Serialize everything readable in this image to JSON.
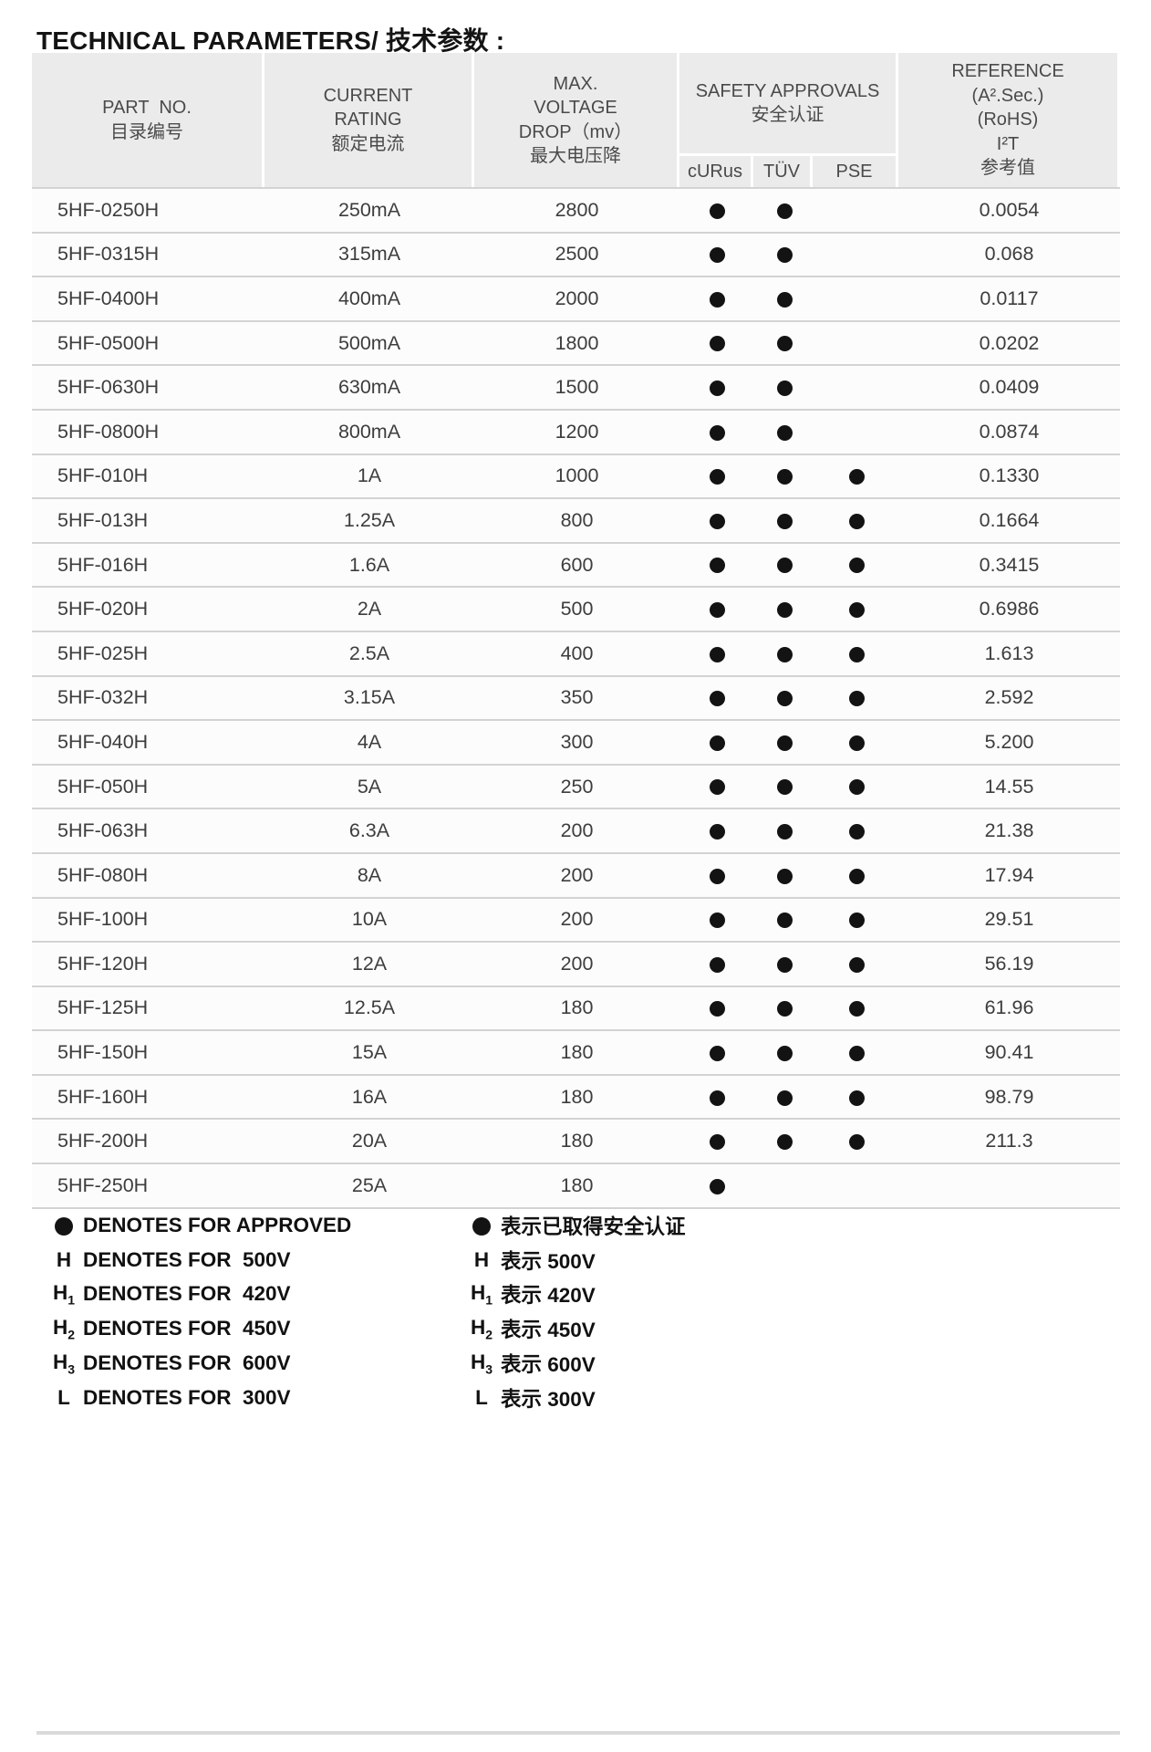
{
  "title": "TECHNICAL PARAMETERS/ 技术参数 :",
  "table": {
    "headers": {
      "part_no": {
        "lines": [
          "PART  NO.",
          "目录编号"
        ]
      },
      "current_rating": {
        "lines": [
          "CURRENT",
          "RATING",
          "额定电流"
        ]
      },
      "voltage_drop": {
        "lines": [
          "MAX.",
          "VOLTAGE",
          "DROP（mv）",
          "最大电压降"
        ]
      },
      "safety": {
        "lines": [
          "SAFETY APPROVALS",
          "安全认证"
        ],
        "subs": [
          "cURus",
          "TÜV",
          "PSE"
        ]
      },
      "reference": {
        "lines": [
          "REFERENCE",
          "(A².Sec.)",
          "(RoHS)",
          "I²T",
          "参考值"
        ]
      }
    },
    "rows": [
      {
        "part": "5HF-0250H",
        "current": "250mA",
        "drop": "2800",
        "curus": true,
        "tuv": true,
        "pse": false,
        "i2t": "0.0054"
      },
      {
        "part": "5HF-0315H",
        "current": "315mA",
        "drop": "2500",
        "curus": true,
        "tuv": true,
        "pse": false,
        "i2t": "0.068"
      },
      {
        "part": "5HF-0400H",
        "current": "400mA",
        "drop": "2000",
        "curus": true,
        "tuv": true,
        "pse": false,
        "i2t": "0.0117"
      },
      {
        "part": "5HF-0500H",
        "current": "500mA",
        "drop": "1800",
        "curus": true,
        "tuv": true,
        "pse": false,
        "i2t": "0.0202"
      },
      {
        "part": "5HF-0630H",
        "current": "630mA",
        "drop": "1500",
        "curus": true,
        "tuv": true,
        "pse": false,
        "i2t": "0.0409"
      },
      {
        "part": "5HF-0800H",
        "current": "800mA",
        "drop": "1200",
        "curus": true,
        "tuv": true,
        "pse": false,
        "i2t": "0.0874"
      },
      {
        "part": "5HF-010H",
        "current": "1A",
        "drop": "1000",
        "curus": true,
        "tuv": true,
        "pse": true,
        "i2t": "0.1330"
      },
      {
        "part": "5HF-013H",
        "current": "1.25A",
        "drop": "800",
        "curus": true,
        "tuv": true,
        "pse": true,
        "i2t": "0.1664"
      },
      {
        "part": "5HF-016H",
        "current": "1.6A",
        "drop": "600",
        "curus": true,
        "tuv": true,
        "pse": true,
        "i2t": "0.3415"
      },
      {
        "part": "5HF-020H",
        "current": "2A",
        "drop": "500",
        "curus": true,
        "tuv": true,
        "pse": true,
        "i2t": "0.6986"
      },
      {
        "part": "5HF-025H",
        "current": "2.5A",
        "drop": "400",
        "curus": true,
        "tuv": true,
        "pse": true,
        "i2t": "1.613"
      },
      {
        "part": "5HF-032H",
        "current": "3.15A",
        "drop": "350",
        "curus": true,
        "tuv": true,
        "pse": true,
        "i2t": "2.592"
      },
      {
        "part": "5HF-040H",
        "current": "4A",
        "drop": "300",
        "curus": true,
        "tuv": true,
        "pse": true,
        "i2t": "5.200"
      },
      {
        "part": "5HF-050H",
        "current": "5A",
        "drop": "250",
        "curus": true,
        "tuv": true,
        "pse": true,
        "i2t": "14.55"
      },
      {
        "part": "5HF-063H",
        "current": "6.3A",
        "drop": "200",
        "curus": true,
        "tuv": true,
        "pse": true,
        "i2t": "21.38"
      },
      {
        "part": "5HF-080H",
        "current": "8A",
        "drop": "200",
        "curus": true,
        "tuv": true,
        "pse": true,
        "i2t": "17.94"
      },
      {
        "part": "5HF-100H",
        "current": "10A",
        "drop": "200",
        "curus": true,
        "tuv": true,
        "pse": true,
        "i2t": "29.51"
      },
      {
        "part": "5HF-120H",
        "current": "12A",
        "drop": "200",
        "curus": true,
        "tuv": true,
        "pse": true,
        "i2t": "56.19"
      },
      {
        "part": "5HF-125H",
        "current": "12.5A",
        "drop": "180",
        "curus": true,
        "tuv": true,
        "pse": true,
        "i2t": "61.96"
      },
      {
        "part": "5HF-150H",
        "current": "15A",
        "drop": "180",
        "curus": true,
        "tuv": true,
        "pse": true,
        "i2t": "90.41"
      },
      {
        "part": "5HF-160H",
        "current": "16A",
        "drop": "180",
        "curus": true,
        "tuv": true,
        "pse": true,
        "i2t": "98.79"
      },
      {
        "part": "5HF-200H",
        "current": "20A",
        "drop": "180",
        "curus": true,
        "tuv": true,
        "pse": true,
        "i2t": "211.3"
      },
      {
        "part": "5HF-250H",
        "current": "25A",
        "drop": "180",
        "curus": true,
        "tuv": false,
        "pse": false,
        "i2t": ""
      }
    ]
  },
  "legend": {
    "left": [
      {
        "symbol": "dot",
        "sub": "",
        "label": "DENOTES FOR APPROVED"
      },
      {
        "symbol": "H",
        "sub": "",
        "label": "DENOTES FOR  500V"
      },
      {
        "symbol": "H",
        "sub": "1",
        "label": "DENOTES FOR  420V"
      },
      {
        "symbol": "H",
        "sub": "2",
        "label": "DENOTES FOR  450V"
      },
      {
        "symbol": "H",
        "sub": "3",
        "label": "DENOTES FOR  600V"
      },
      {
        "symbol": "L",
        "sub": "",
        "label": "DENOTES FOR  300V"
      }
    ],
    "right": [
      {
        "symbol": "dot",
        "sub": "",
        "label": "表示已取得安全认证"
      },
      {
        "symbol": "H",
        "sub": "",
        "label": "表示 500V"
      },
      {
        "symbol": "H",
        "sub": "1",
        "label": "表示 420V"
      },
      {
        "symbol": "H",
        "sub": "2",
        "label": "表示 450V"
      },
      {
        "symbol": "H",
        "sub": "3",
        "label": "表示 600V"
      },
      {
        "symbol": "L",
        "sub": "",
        "label": "表示 300V"
      }
    ]
  },
  "colors": {
    "header_bg": "#ebebeb",
    "row_bg": "#fcfcfc",
    "divider": "#d3d3d3",
    "dot": "#131313"
  }
}
